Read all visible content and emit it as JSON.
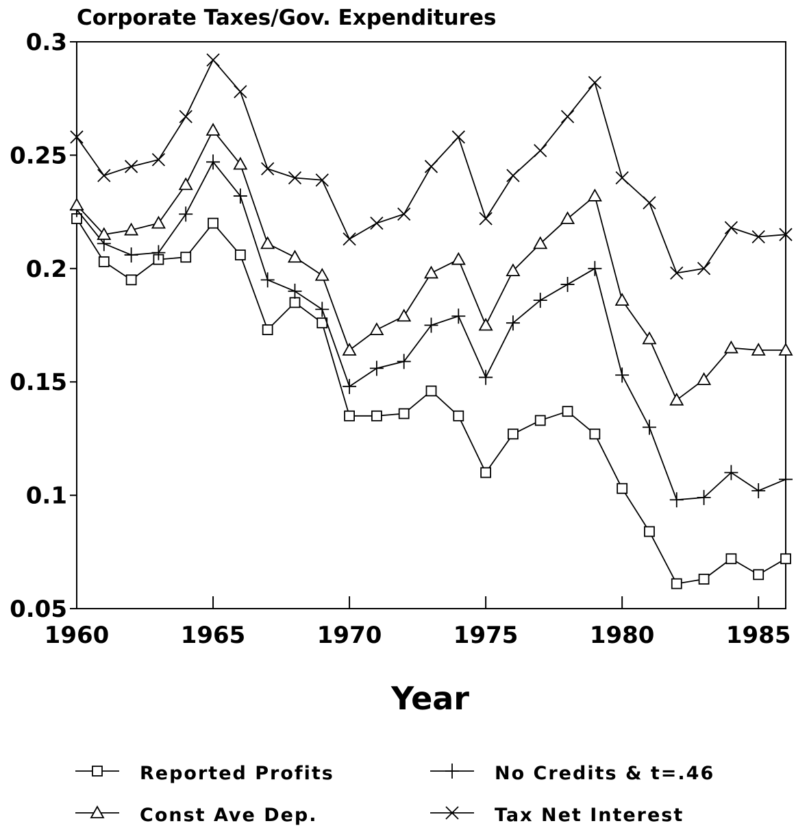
{
  "chart_data": {
    "type": "line",
    "title": "Corporate Taxes/Gov. Expenditures",
    "x_label": "Year",
    "x": [
      1960,
      1961,
      1962,
      1963,
      1964,
      1965,
      1966,
      1967,
      1968,
      1969,
      1970,
      1971,
      1972,
      1973,
      1974,
      1975,
      1976,
      1977,
      1978,
      1979,
      1980,
      1981,
      1982,
      1983,
      1984,
      1985,
      1986
    ],
    "xlim": [
      1960,
      1986
    ],
    "xticks": [
      1960,
      1965,
      1970,
      1975,
      1980,
      1985
    ],
    "ylim": [
      0.05,
      0.3
    ],
    "yticks": [
      0.05,
      0.1,
      0.15,
      0.2,
      0.25,
      0.3
    ],
    "grid": false,
    "series": [
      {
        "name": "Reported Profits",
        "color": "#000000",
        "marker": "square",
        "values": [
          0.222,
          0.203,
          0.195,
          0.204,
          0.205,
          0.22,
          0.206,
          0.173,
          0.185,
          0.176,
          0.135,
          0.135,
          0.136,
          0.146,
          0.135,
          0.11,
          0.127,
          0.133,
          0.137,
          0.127,
          0.103,
          0.084,
          0.061,
          0.063,
          0.072,
          0.065,
          0.072
        ]
      },
      {
        "name": "No Credits & t=.46",
        "color": "#000000",
        "marker": "plus",
        "values": [
          0.226,
          0.211,
          0.206,
          0.207,
          0.224,
          0.247,
          0.232,
          0.195,
          0.19,
          0.182,
          0.148,
          0.156,
          0.159,
          0.175,
          0.179,
          0.152,
          0.176,
          0.186,
          0.193,
          0.2,
          0.153,
          0.13,
          0.098,
          0.099,
          0.11,
          0.102,
          0.107
        ]
      },
      {
        "name": "Const Ave Dep.",
        "color": "#000000",
        "marker": "triangle",
        "values": [
          0.228,
          0.215,
          0.217,
          0.22,
          0.237,
          0.261,
          0.246,
          0.211,
          0.205,
          0.197,
          0.164,
          0.173,
          0.179,
          0.198,
          0.204,
          0.175,
          0.199,
          0.211,
          0.222,
          0.232,
          0.186,
          0.169,
          0.142,
          0.151,
          0.165,
          0.164,
          0.164
        ]
      },
      {
        "name": "Tax Net Interest",
        "color": "#000000",
        "marker": "x",
        "values": [
          0.258,
          0.241,
          0.245,
          0.248,
          0.267,
          0.292,
          0.278,
          0.244,
          0.24,
          0.239,
          0.213,
          0.22,
          0.224,
          0.245,
          0.258,
          0.222,
          0.241,
          0.252,
          0.267,
          0.282,
          0.24,
          0.229,
          0.198,
          0.2,
          0.218,
          0.214,
          0.215
        ]
      }
    ]
  }
}
